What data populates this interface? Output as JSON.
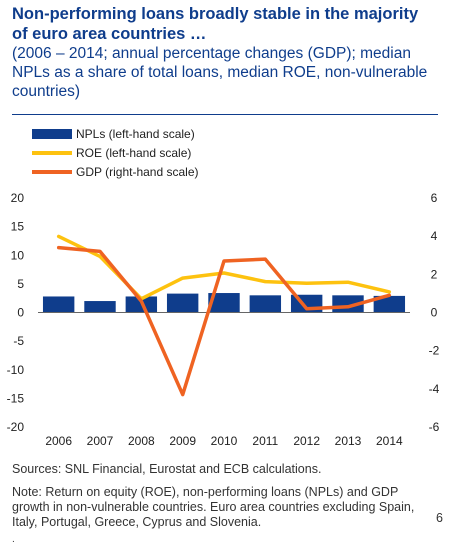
{
  "header": {
    "title": "Non-performing loans broadly stable in the majority of euro area countries …",
    "subtitle": "(2006 – 2014; annual percentage changes (GDP); median NPLs as a share of total loans, median ROE, non-vulnerable countries)"
  },
  "footer": {
    "sources": "Sources: SNL Financial, Eurostat and ECB calculations.",
    "note": "Note: Return on equity (ROE), non-performing loans (NPLs) and GDP growth in non-vulnerable countries. Euro area countries excluding Spain, Italy, Portugal, Greece, Cyprus and Slovenia.",
    "page_number": "6",
    "mark": "."
  },
  "chart_data": {
    "type": "bar",
    "categories": [
      "2006",
      "2007",
      "2008",
      "2009",
      "2010",
      "2011",
      "2012",
      "2013",
      "2014"
    ],
    "series": [
      {
        "name": "NPLs (left-hand scale)",
        "kind": "bar",
        "axis": "left",
        "color": "#0f3d8c",
        "values": [
          2.8,
          2.0,
          2.8,
          3.3,
          3.4,
          3.0,
          3.1,
          3.0,
          2.9
        ]
      },
      {
        "name": "ROE (left-hand scale)",
        "kind": "line",
        "axis": "left",
        "color": "#fdc20f",
        "values": [
          13.3,
          9.8,
          2.4,
          6.0,
          6.9,
          5.4,
          5.1,
          5.3,
          3.6
        ]
      },
      {
        "name": "GDP (right-hand scale)",
        "kind": "line",
        "axis": "right",
        "color": "#ef6322",
        "values": [
          3.4,
          3.2,
          0.6,
          -4.3,
          2.7,
          2.8,
          0.2,
          0.3,
          0.9
        ]
      }
    ],
    "left_axis": {
      "min": -20,
      "max": 20,
      "step": 5,
      "ticks": [
        "20",
        "15",
        "10",
        "5",
        "0",
        "-5",
        "-10",
        "-15",
        "-20"
      ]
    },
    "right_axis": {
      "min": -6,
      "max": 6,
      "step": 2,
      "ticks": [
        "6",
        "4",
        "2",
        "0",
        "-2",
        "-4",
        "-6"
      ]
    },
    "legend_placement": "top-left",
    "grid": false
  }
}
